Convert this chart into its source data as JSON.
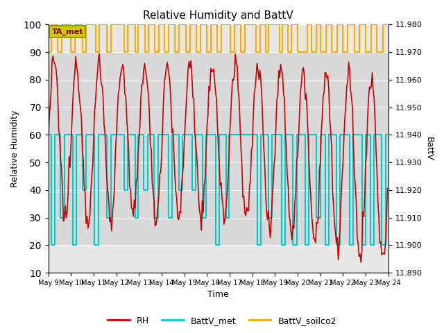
{
  "title": "Relative Humidity and BattV",
  "xlabel": "Time",
  "ylabel_left": "Relative Humidity",
  "ylabel_right": "BattV",
  "ylim_left": [
    10,
    100
  ],
  "ylim_right": [
    11.89,
    11.98
  ],
  "background_color": "#ffffff",
  "plot_bg_color": "#e8e8e8",
  "plot_inner_bg": "#d8d8d8",
  "x_ticks": [
    "May 9",
    "May 10",
    "May 11",
    "May 12",
    "May 13",
    "May 14",
    "May 15",
    "May 16",
    "May 17",
    "May 18",
    "May 19",
    "May 20",
    "May 21",
    "May 22",
    "May 23",
    "May 24"
  ],
  "annotation_text": "TA_met",
  "annotation_color": "#cccc00",
  "rh_color": "#cc0000",
  "battv_met_color": "#00cccc",
  "battv_soilco2_color": "#ffaa00",
  "legend_labels": [
    "RH",
    "BattV_met",
    "BattV_soilco2"
  ],
  "grid_color": "#ffffff",
  "yticks_left": [
    10,
    20,
    30,
    40,
    50,
    60,
    70,
    80,
    90,
    100
  ],
  "yticks_right": [
    11.89,
    11.9,
    11.91,
    11.92,
    11.93,
    11.94,
    11.95,
    11.96,
    11.97,
    11.98
  ]
}
